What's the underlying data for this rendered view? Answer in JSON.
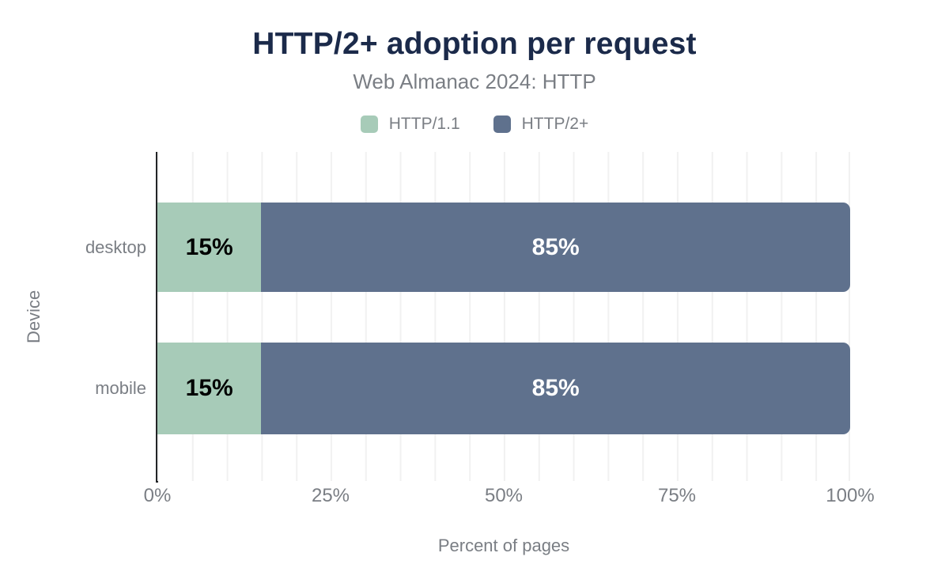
{
  "header": {
    "title": "HTTP/2+ adoption per request",
    "subtitle": "Web Almanac 2024: HTTP"
  },
  "chart_data": {
    "type": "bar",
    "orientation": "horizontal",
    "stacked": true,
    "title": "HTTP/2+ adoption per request",
    "subtitle": "Web Almanac 2024: HTTP",
    "xlabel": "Percent of pages",
    "ylabel": "Device",
    "categories": [
      "desktop",
      "mobile"
    ],
    "series": [
      {
        "name": "HTTP/1.1",
        "color": "#a7cbb8",
        "label_color": "#000000",
        "values": [
          15,
          15
        ]
      },
      {
        "name": "HTTP/2+",
        "color": "#5f718d",
        "label_color": "#ffffff",
        "values": [
          85,
          85
        ]
      }
    ],
    "bar_labels": [
      [
        "15%",
        "85%"
      ],
      [
        "15%",
        "85%"
      ]
    ],
    "xlim": [
      0,
      100
    ],
    "x_ticks": [
      "0%",
      "25%",
      "50%",
      "75%",
      "100%"
    ],
    "x_tick_values": [
      0,
      25,
      50,
      75,
      100
    ],
    "grid": "vertical",
    "grid_interval_pct": 5,
    "legend_position": "top"
  },
  "style": {
    "title_color": "#1b2a4a",
    "muted_text_color": "#7a7e84",
    "axis_color": "#222426",
    "grid_color": "#f1f1f1",
    "background_color": "#ffffff"
  }
}
